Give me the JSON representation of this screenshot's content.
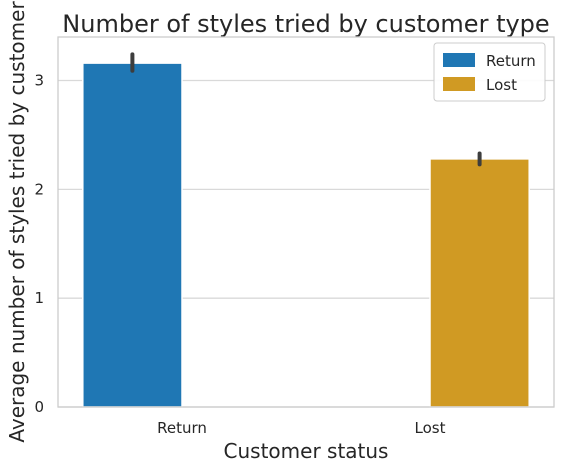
{
  "chart_data": {
    "type": "bar",
    "title": "Number of styles tried by customer type",
    "xlabel": "Customer status",
    "ylabel": "Average number of styles tried by customer",
    "categories": [
      "Return",
      "Lost"
    ],
    "series": [
      {
        "name": "Return",
        "color": "#1f77b4",
        "values": [
          3.16,
          null
        ],
        "error_low": [
          3.09,
          null
        ],
        "error_high": [
          3.24,
          null
        ]
      },
      {
        "name": "Lost",
        "color": "#d09a23",
        "values": [
          null,
          2.28
        ],
        "error_low": [
          null,
          2.23
        ],
        "error_high": [
          null,
          2.33
        ]
      }
    ],
    "ylim": [
      0,
      3.4
    ],
    "yticks": [
      0,
      1,
      2,
      3
    ],
    "grid": true,
    "legend_position": "top-right"
  }
}
